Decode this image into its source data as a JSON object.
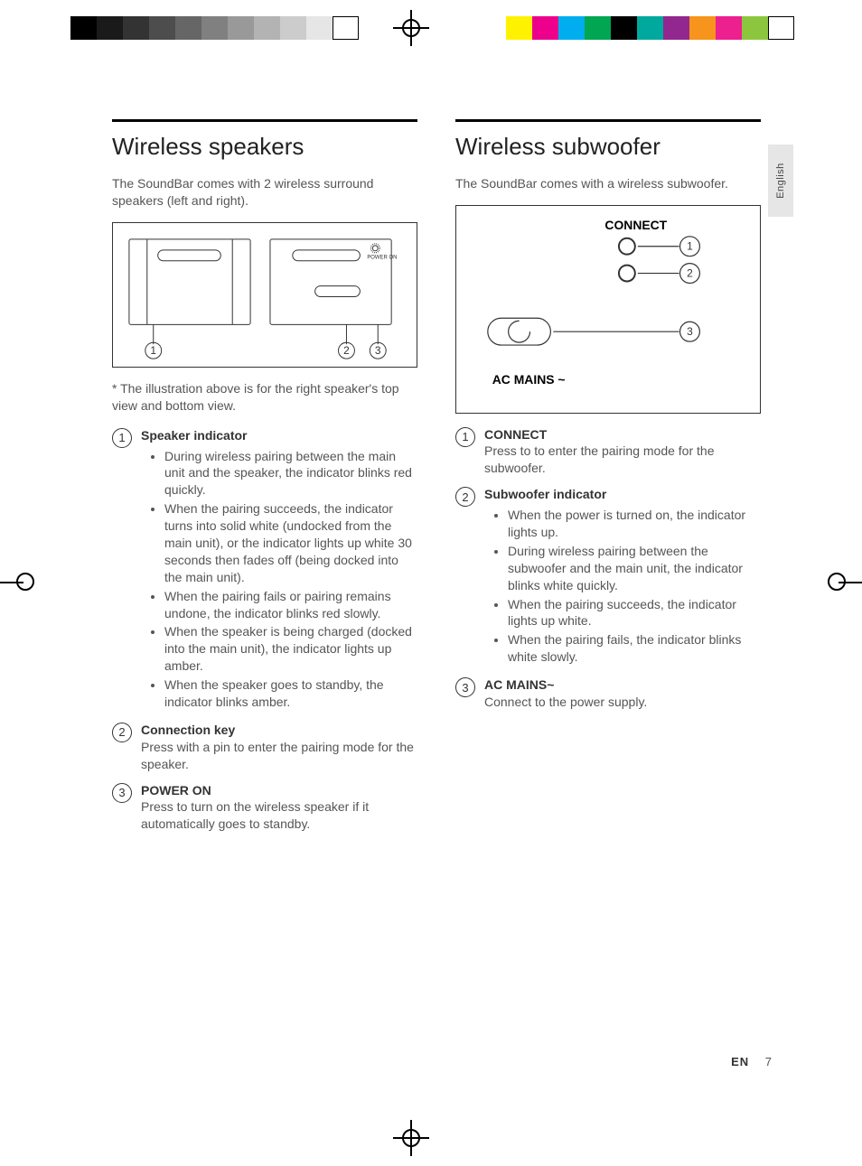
{
  "regmarks": {
    "greyscale": [
      "#000000",
      "#1a1a1a",
      "#333333",
      "#4d4d4d",
      "#666666",
      "#808080",
      "#999999",
      "#b3b3b3",
      "#cccccc",
      "#e6e6e6",
      "#ffffff"
    ],
    "process": [
      "#fff200",
      "#ec008c",
      "#00aeef",
      "#00a651",
      "#000000",
      "#00a99d",
      "#92278f",
      "#f7941d",
      "#ec208e",
      "#8cc63f",
      "#ffffff"
    ]
  },
  "lang_tab": "English",
  "left": {
    "heading": "Wireless speakers",
    "intro": "The SoundBar comes with 2 wireless surround speakers (left and right).",
    "figure": {
      "callouts": [
        "1",
        "2",
        "3"
      ],
      "power_label": "POWER ON"
    },
    "footnote": "* The illustration above is for the right speaker's top view and bottom view.",
    "items": [
      {
        "num": "1",
        "title": "Speaker indicator",
        "bullets": [
          "During wireless pairing between the main unit and the speaker, the indicator blinks red quickly.",
          "When the pairing succeeds, the indicator turns into solid white (undocked from the main unit), or the indicator lights up white 30 seconds then fades off (being docked into the main unit).",
          "When the pairing fails or pairing remains undone, the indicator blinks red slowly.",
          "When the speaker is being charged (docked into the main unit), the indicator lights up amber.",
          "When the speaker goes to standby, the indicator blinks amber."
        ]
      },
      {
        "num": "2",
        "title": "Connection key",
        "desc": "Press with a pin to enter the pairing mode for the speaker."
      },
      {
        "num": "3",
        "title": "POWER ON",
        "desc": "Press to turn on the wireless speaker if it automatically goes to standby."
      }
    ]
  },
  "right": {
    "heading": "Wireless subwoofer",
    "intro": "The SoundBar comes with a wireless subwoofer.",
    "figure": {
      "connect_label": "CONNECT",
      "ac_label": "AC MAINS ~",
      "callouts": [
        "1",
        "2",
        "3"
      ]
    },
    "items": [
      {
        "num": "1",
        "title": "CONNECT",
        "desc": "Press to to enter the pairing mode for the subwoofer."
      },
      {
        "num": "2",
        "title": "Subwoofer indicator",
        "bullets": [
          "When the power is turned on, the indicator lights up.",
          "During wireless pairing between the subwoofer and the main unit, the indicator blinks white quickly.",
          "When the pairing succeeds, the indicator lights up white.",
          "When the pairing fails, the indicator blinks white slowly."
        ]
      },
      {
        "num": "3",
        "title": "AC MAINS~",
        "desc": "Connect to the power supply."
      }
    ]
  },
  "footer": {
    "lang": "EN",
    "page": "7"
  }
}
